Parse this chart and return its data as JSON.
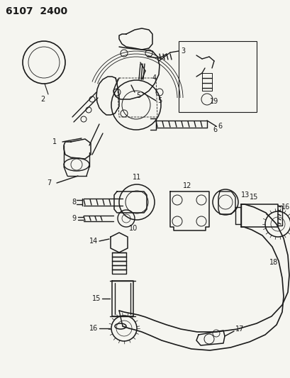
{
  "title": "6107  2400",
  "bg": "#f5f5f0",
  "lc": "#1a1a1a",
  "lw": 1.0,
  "title_fs": 10,
  "label_fs": 7,
  "figsize": [
    4.1,
    5.33
  ],
  "dpi": 100
}
